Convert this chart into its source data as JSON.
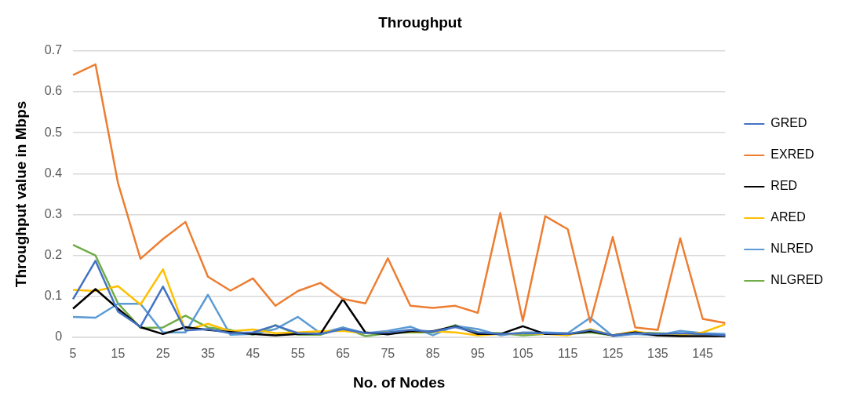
{
  "chart_data": {
    "type": "line",
    "title": "Throughput",
    "xlabel": "No. of Nodes",
    "ylabel": "Throughput value in Mbps",
    "categories": [
      "5",
      null,
      "15",
      null,
      "25",
      null,
      "35",
      null,
      "45",
      null,
      "55",
      null,
      "65",
      null,
      "75",
      null,
      "85",
      null,
      "95",
      null,
      "105",
      null,
      "115",
      null,
      "125",
      null,
      "135",
      null,
      "145",
      null
    ],
    "ylim": [
      0,
      0.7
    ],
    "yticks": [
      0,
      0.1,
      0.2,
      0.3,
      0.4,
      0.5,
      0.6,
      0.7
    ],
    "grid": "y",
    "legend": "right",
    "marker": "none",
    "line_style": "solid",
    "series": [
      {
        "name": "GRED",
        "color": "#4472c4",
        "values": [
          0.093,
          0.187,
          0.063,
          0.026,
          0.124,
          0.017,
          0.02,
          0.01,
          0.012,
          0.029,
          0.01,
          0.008,
          0.02,
          0.01,
          0.012,
          0.018,
          0.014,
          0.025,
          0.012,
          0.008,
          0.01,
          0.01,
          0.008,
          0.018,
          0.005,
          0.01,
          0.008,
          0.01,
          0.008,
          0.005
        ]
      },
      {
        "name": "EXRED",
        "color": "#ed7d31",
        "values": [
          0.641,
          0.667,
          0.377,
          0.192,
          0.24,
          0.282,
          0.148,
          0.114,
          0.144,
          0.077,
          0.113,
          0.133,
          0.094,
          0.083,
          0.193,
          0.077,
          0.072,
          0.077,
          0.06,
          0.304,
          0.04,
          0.296,
          0.264,
          0.037,
          0.245,
          0.024,
          0.018,
          0.242,
          0.045,
          0.035
        ]
      },
      {
        "name": "RED",
        "color": "#000000",
        "values": [
          0.07,
          0.118,
          0.07,
          0.025,
          0.008,
          0.025,
          0.018,
          0.013,
          0.008,
          0.005,
          0.008,
          0.008,
          0.093,
          0.012,
          0.007,
          0.015,
          0.015,
          0.027,
          0.008,
          0.008,
          0.027,
          0.008,
          0.008,
          0.015,
          0.005,
          0.012,
          0.005,
          0.003,
          0.003,
          0.003
        ]
      },
      {
        "name": "ARED",
        "color": "#ffc000",
        "values": [
          0.116,
          0.113,
          0.125,
          0.08,
          0.166,
          0.017,
          0.033,
          0.015,
          0.019,
          0.01,
          0.012,
          0.015,
          0.016,
          0.01,
          0.012,
          0.014,
          0.015,
          0.012,
          0.005,
          0.008,
          0.01,
          0.008,
          0.005,
          0.02,
          0.005,
          0.015,
          0.005,
          0.005,
          0.012,
          0.032
        ]
      },
      {
        "name": "NLRED",
        "color": "#5b9bd5",
        "values": [
          0.05,
          0.048,
          0.082,
          0.082,
          0.012,
          0.012,
          0.104,
          0.006,
          0.008,
          0.02,
          0.05,
          0.01,
          0.024,
          0.01,
          0.016,
          0.026,
          0.005,
          0.028,
          0.02,
          0.005,
          0.012,
          0.012,
          0.01,
          0.048,
          0.003,
          0.008,
          0.005,
          0.016,
          0.01,
          0.008
        ]
      },
      {
        "name": "NLGRED",
        "color": "#70ad47",
        "values": [
          0.226,
          0.2,
          0.083,
          0.023,
          0.024,
          0.053,
          0.024,
          0.018,
          0.006,
          0.03,
          0.006,
          0.006,
          0.024,
          0.003,
          0.01,
          0.012,
          0.012,
          0.03,
          0.012,
          0.01,
          0.005,
          0.008,
          0.008,
          0.012,
          0.005,
          0.012,
          0.01,
          0.008,
          0.008,
          0.005
        ]
      }
    ]
  }
}
